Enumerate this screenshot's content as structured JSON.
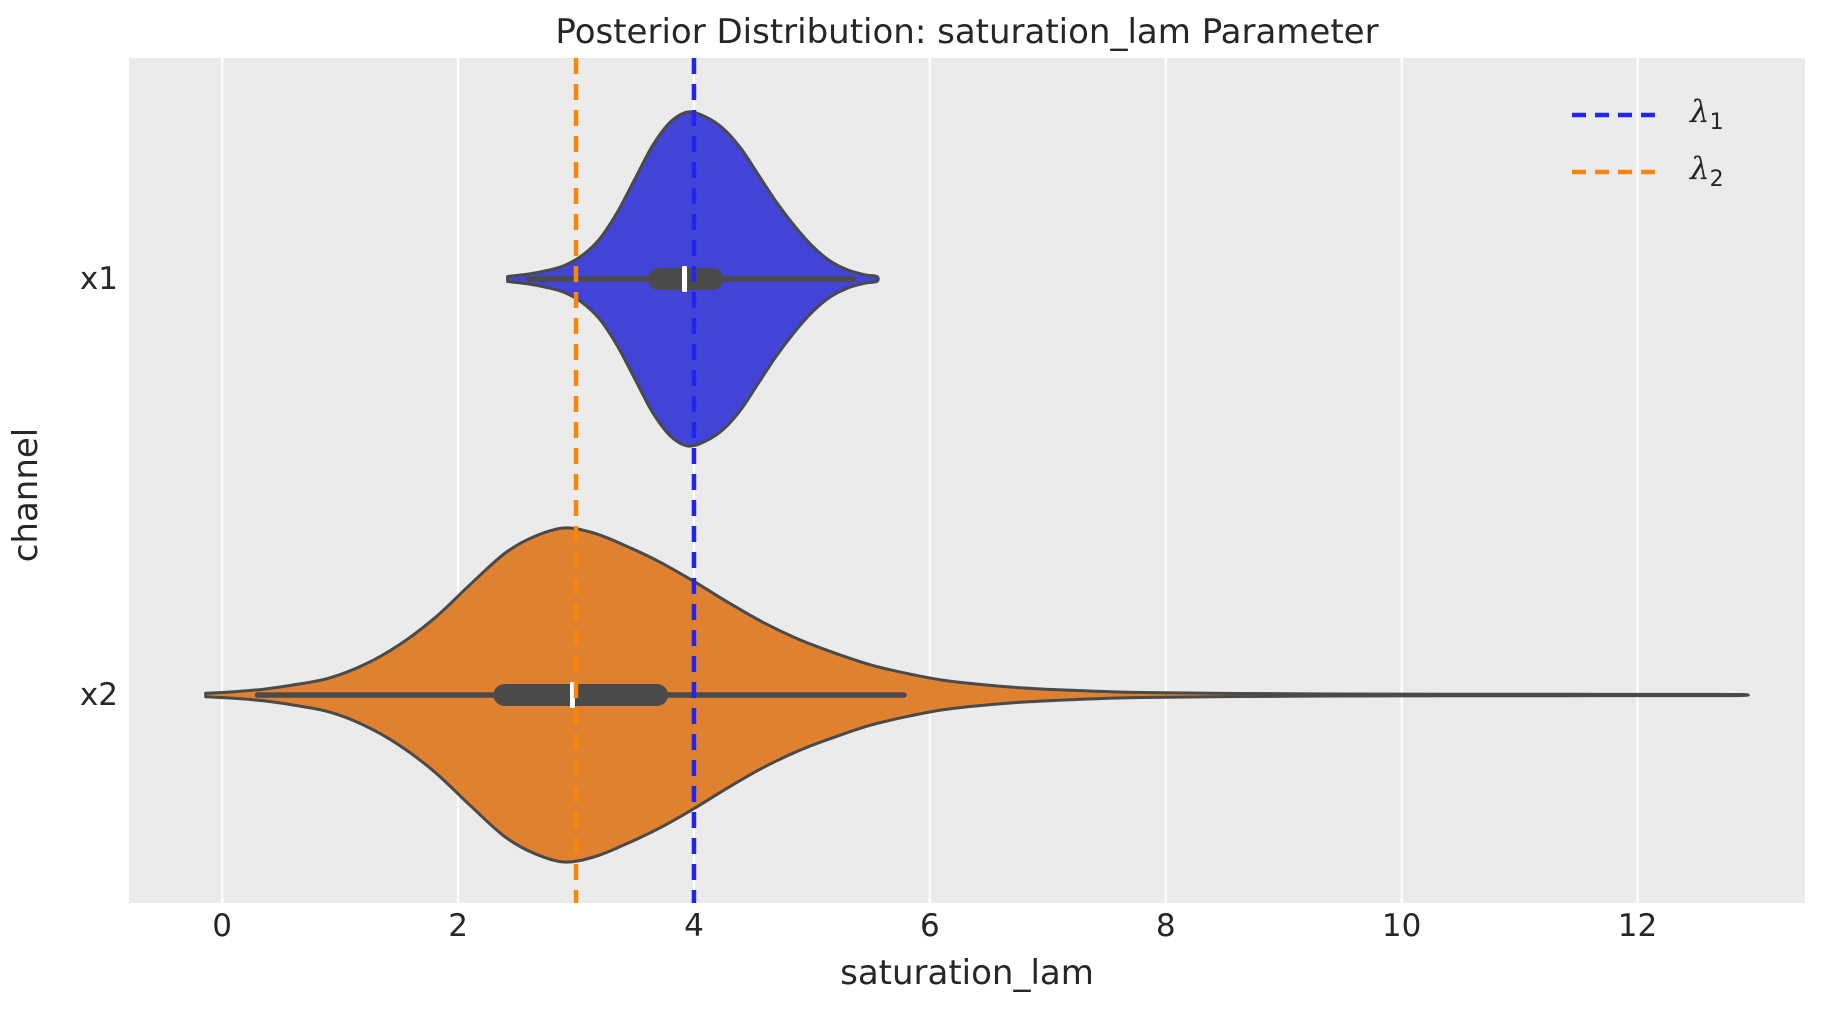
{
  "chart_data": {
    "type": "violin",
    "title": "Posterior Distribution: saturation_lam Parameter",
    "xlabel": "saturation_lam",
    "ylabel": "channel",
    "orientation": "horizontal",
    "categories": [
      "x1",
      "x2"
    ],
    "xticks": [
      0,
      2,
      4,
      6,
      8,
      10,
      12
    ],
    "xlim": [
      -0.79,
      13.42
    ],
    "grid": "vertical-white-on-gray",
    "legend_position": "upper right",
    "series": [
      {
        "name": "x1",
        "fill_color": "#4144d6",
        "edge_color": "#4a4a4a",
        "median": 3.92,
        "q1": 3.61,
        "q3": 4.25,
        "whisker_low": 2.6,
        "whisker_high": 5.35,
        "range": [
          2.42,
          5.55
        ],
        "peak": 3.95,
        "profile": [
          [
            2.42,
            0.015
          ],
          [
            2.6,
            0.03
          ],
          [
            2.75,
            0.05
          ],
          [
            2.9,
            0.08
          ],
          [
            3.05,
            0.14
          ],
          [
            3.2,
            0.24
          ],
          [
            3.35,
            0.4
          ],
          [
            3.5,
            0.6
          ],
          [
            3.65,
            0.8
          ],
          [
            3.8,
            0.94
          ],
          [
            3.95,
            1.0
          ],
          [
            4.1,
            0.97
          ],
          [
            4.25,
            0.9
          ],
          [
            4.4,
            0.78
          ],
          [
            4.55,
            0.62
          ],
          [
            4.7,
            0.46
          ],
          [
            4.85,
            0.32
          ],
          [
            5.0,
            0.2
          ],
          [
            5.15,
            0.11
          ],
          [
            5.3,
            0.055
          ],
          [
            5.45,
            0.025
          ],
          [
            5.55,
            0.015
          ]
        ]
      },
      {
        "name": "x2",
        "fill_color": "#e0812f",
        "edge_color": "#4a4a4a",
        "median": 2.97,
        "q1": 2.3,
        "q3": 3.78,
        "whisker_low": 0.3,
        "whisker_high": 5.78,
        "range": [
          -0.14,
          12.88
        ],
        "peak": 2.9,
        "profile": [
          [
            -0.14,
            0.01
          ],
          [
            0.1,
            0.02
          ],
          [
            0.35,
            0.035
          ],
          [
            0.6,
            0.06
          ],
          [
            0.9,
            0.1
          ],
          [
            1.2,
            0.18
          ],
          [
            1.5,
            0.3
          ],
          [
            1.8,
            0.46
          ],
          [
            2.1,
            0.66
          ],
          [
            2.4,
            0.85
          ],
          [
            2.65,
            0.95
          ],
          [
            2.9,
            1.0
          ],
          [
            3.15,
            0.97
          ],
          [
            3.4,
            0.9
          ],
          [
            3.7,
            0.8
          ],
          [
            4.0,
            0.68
          ],
          [
            4.3,
            0.55
          ],
          [
            4.6,
            0.43
          ],
          [
            4.9,
            0.33
          ],
          [
            5.2,
            0.25
          ],
          [
            5.5,
            0.18
          ],
          [
            5.8,
            0.13
          ],
          [
            6.1,
            0.09
          ],
          [
            6.4,
            0.065
          ],
          [
            6.8,
            0.042
          ],
          [
            7.2,
            0.028
          ],
          [
            7.6,
            0.018
          ],
          [
            8.0,
            0.013
          ],
          [
            8.6,
            0.009
          ],
          [
            9.4,
            0.006
          ],
          [
            10.4,
            0.005
          ],
          [
            11.4,
            0.004
          ],
          [
            12.4,
            0.0035
          ],
          [
            12.88,
            0.003
          ]
        ]
      }
    ],
    "reference_lines": [
      {
        "id": "lambda_1",
        "value": 4.0,
        "color": "#2424f0",
        "style": "dashed",
        "legend_symbol": "λ",
        "legend_subscript": "1"
      },
      {
        "id": "lambda_2",
        "value": 3.0,
        "color": "#fc860b",
        "style": "dashed",
        "legend_symbol": "λ",
        "legend_subscript": "2"
      }
    ],
    "style": {
      "axes_background": "#ebebeb",
      "grid_color": "#ffffff",
      "box_color": "#4a4a4a",
      "median_color": "#ffffff",
      "text_color": "#262626"
    }
  }
}
